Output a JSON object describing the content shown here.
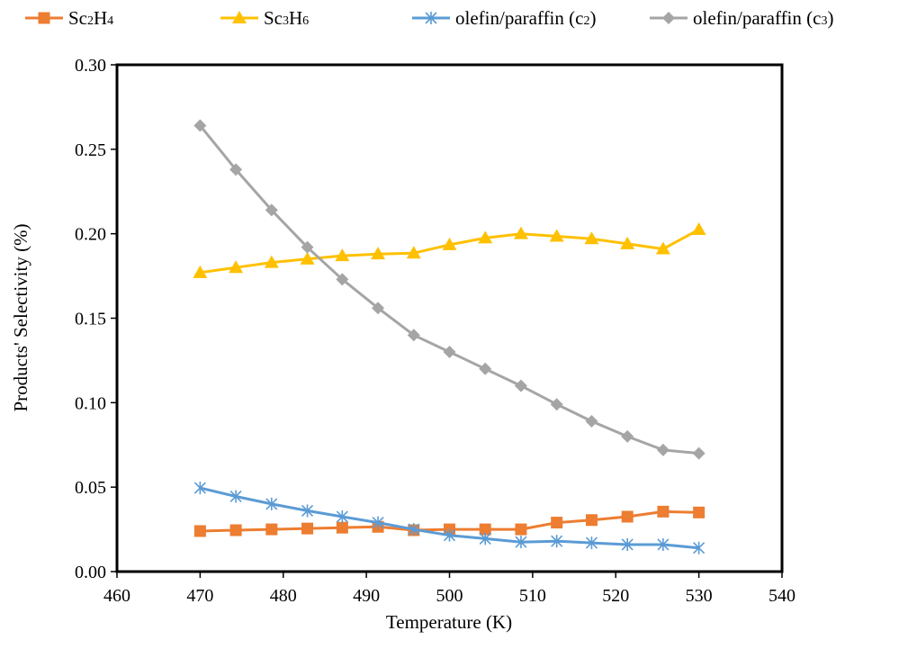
{
  "chart_data": {
    "type": "line",
    "xlabel": "Temperature (K)",
    "ylabel": "Products' Selectivity (%)",
    "xlim": [
      460,
      540
    ],
    "ylim": [
      0,
      0.3
    ],
    "xticks": [
      460,
      470,
      480,
      490,
      500,
      510,
      520,
      530,
      540
    ],
    "yticks": [
      0.0,
      0.05,
      0.1,
      0.15,
      0.2,
      0.25,
      0.3
    ],
    "xtick_labels": [
      "460",
      "470",
      "480",
      "490",
      "500",
      "510",
      "520",
      "530",
      "540"
    ],
    "ytick_labels": [
      "0.00",
      "0.05",
      "0.10",
      "0.15",
      "0.20",
      "0.25",
      "0.30"
    ],
    "grid": false,
    "legend_position": "top",
    "x": [
      470,
      474.3,
      478.6,
      482.9,
      487.1,
      491.4,
      495.7,
      500,
      504.3,
      508.6,
      512.9,
      517.1,
      521.4,
      525.7,
      530
    ],
    "series": [
      {
        "name": "Sc2H4",
        "legend": {
          "base": "Sc",
          "s1": "2",
          "mid": "H",
          "s2": "4"
        },
        "marker": "square",
        "color": "#ED7D31",
        "values": [
          0.024,
          0.0245,
          0.025,
          0.0255,
          0.026,
          0.0265,
          0.0245,
          0.025,
          0.025,
          0.025,
          0.029,
          0.0305,
          0.0325,
          0.0355,
          0.035
        ]
      },
      {
        "name": "Sc3H6",
        "legend": {
          "base": "Sc",
          "s1": "3",
          "mid": "H",
          "s2": "6"
        },
        "marker": "triangle",
        "color": "#FFC000",
        "values": [
          0.177,
          0.18,
          0.183,
          0.185,
          0.187,
          0.188,
          0.1885,
          0.1935,
          0.1975,
          0.2,
          0.1985,
          0.197,
          0.194,
          0.191,
          0.2025
        ]
      },
      {
        "name": "olefin/paraffin (c2)",
        "legend": {
          "base": "olefin/paraffin (c",
          "s1": "2",
          "mid": ")",
          "s2": ""
        },
        "marker": "asterisk",
        "color": "#5B9BD5",
        "values": [
          0.0495,
          0.0445,
          0.04,
          0.036,
          0.0325,
          0.029,
          0.025,
          0.0215,
          0.0195,
          0.0175,
          0.018,
          0.017,
          0.016,
          0.016,
          0.014
        ]
      },
      {
        "name": "olefin/paraffin (c3)",
        "legend": {
          "base": "olefin/paraffin (c",
          "s1": "3",
          "mid": ")",
          "s2": ""
        },
        "marker": "diamond",
        "color": "#A5A5A5",
        "values": [
          0.264,
          0.238,
          0.214,
          0.192,
          0.173,
          0.156,
          0.14,
          0.13,
          0.12,
          0.11,
          0.099,
          0.089,
          0.08,
          0.072,
          0.07
        ]
      }
    ]
  }
}
